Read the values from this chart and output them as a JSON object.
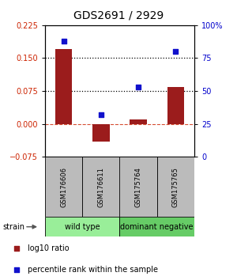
{
  "title": "GDS2691 / 2929",
  "samples": [
    "GSM176606",
    "GSM176611",
    "GSM175764",
    "GSM175765"
  ],
  "log10_ratio": [
    0.17,
    -0.04,
    0.01,
    0.085
  ],
  "percentile_rank": [
    88,
    32,
    53,
    80
  ],
  "ylim_left": [
    -0.075,
    0.225
  ],
  "ylim_right": [
    0,
    100
  ],
  "yticks_left": [
    -0.075,
    0,
    0.075,
    0.15,
    0.225
  ],
  "yticks_right": [
    0,
    25,
    50,
    75,
    100
  ],
  "hlines_dotted": [
    0.15,
    0.075
  ],
  "bar_color": "#9B1C1C",
  "dot_color": "#1111CC",
  "group_colors": [
    "#99EE99",
    "#66CC66"
  ],
  "group_labels": [
    "wild type",
    "dominant negative"
  ],
  "group_ranges": [
    [
      0,
      2
    ],
    [
      2,
      4
    ]
  ],
  "legend_items": [
    {
      "label": "log10 ratio",
      "color": "#9B1C1C"
    },
    {
      "label": "percentile rank within the sample",
      "color": "#1111CC"
    }
  ],
  "left_axis_color": "#CC2200",
  "right_axis_color": "#0000CC",
  "strain_label": "strain",
  "box_color": "#BBBBBB",
  "bar_width": 0.45,
  "dot_size": 22,
  "title_fontsize": 10,
  "tick_fontsize": 7,
  "sample_fontsize": 6,
  "group_fontsize": 7,
  "legend_fontsize": 7
}
